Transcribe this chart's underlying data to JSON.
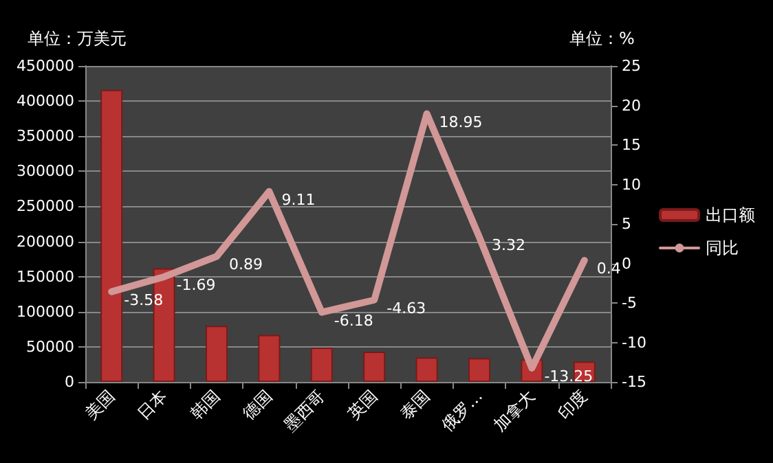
{
  "chart_data": {
    "type": "bar",
    "ylabel": "单位：万美元",
    "y2label": "单位：%",
    "categories": [
      "美国",
      "日本",
      "韩国",
      "德国",
      "墨西哥",
      "英国",
      "泰国",
      "俄罗…",
      "加拿大",
      "印度"
    ],
    "series": [
      {
        "name": "出口额",
        "color": "#b83232",
        "values": [
          416000,
          162000,
          80000,
          67000,
          49000,
          43000,
          35000,
          34000,
          32000,
          29000
        ]
      },
      {
        "name": "同比",
        "type": "line",
        "axis": "y2",
        "color": "#d29797",
        "values": [
          -3.58,
          -1.69,
          0.89,
          9.11,
          -6.18,
          -4.63,
          18.95,
          3.32,
          -13.25,
          0.4
        ],
        "value_labels": [
          "-3.58",
          "-1.69",
          "0.89",
          "9.11",
          "-6.18",
          "-4.63",
          "18.95",
          "3.32",
          "-13.25",
          "0.4"
        ]
      }
    ],
    "ylim": [
      0,
      450000
    ],
    "yticks": [
      0,
      50000,
      100000,
      150000,
      200000,
      250000,
      300000,
      350000,
      400000,
      450000
    ],
    "y2lim": [
      -15,
      25
    ],
    "y2ticks": [
      -15,
      -10,
      -5,
      0,
      5,
      10,
      15,
      20,
      25
    ],
    "grid": "y",
    "legend": "right",
    "marker": "none"
  }
}
